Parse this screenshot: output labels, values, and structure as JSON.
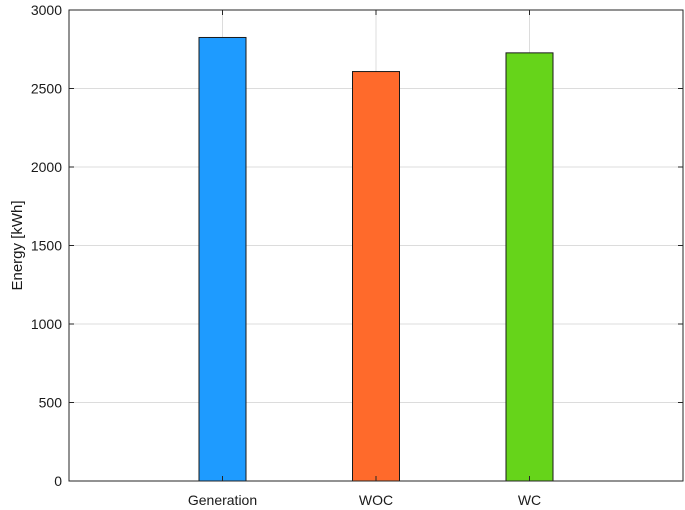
{
  "chart_data": {
    "type": "bar",
    "title": "",
    "xlabel": "",
    "ylabel": "Energy [kWh]",
    "categories": [
      "Generation",
      "WOC",
      "WC"
    ],
    "values": [
      2825,
      2608,
      2727
    ],
    "colors": [
      "#1e9bff",
      "#ff6a2b",
      "#66d41a"
    ],
    "ylim": [
      0,
      3000
    ],
    "yticks": [
      0,
      500,
      1000,
      1500,
      2000,
      2500,
      3000
    ],
    "grid": true,
    "legend": "none"
  }
}
